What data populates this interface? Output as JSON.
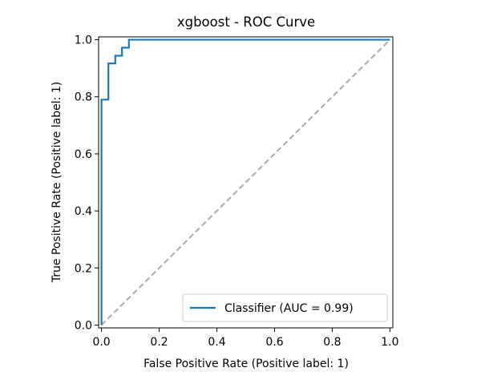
{
  "chart_data": {
    "type": "line",
    "title": "xgboost - ROC Curve",
    "xlabel": "False Positive Rate (Positive label: 1)",
    "ylabel": "True Positive Rate (Positive label: 1)",
    "xlim": [
      -0.01,
      1.01
    ],
    "ylim": [
      -0.01,
      1.01
    ],
    "xticks": [
      0.0,
      0.2,
      0.4,
      0.6,
      0.8,
      1.0
    ],
    "yticks": [
      0.0,
      0.2,
      0.4,
      0.6,
      0.8,
      1.0
    ],
    "xtick_labels": [
      "0.0",
      "0.2",
      "0.4",
      "0.6",
      "0.8",
      "1.0"
    ],
    "ytick_labels": [
      "0.0",
      "0.2",
      "0.4",
      "0.6",
      "0.8",
      "1.0"
    ],
    "grid": false,
    "legend_position": "bottom-right",
    "series": [
      {
        "name": "Classifier (AUC = 0.99)",
        "color": "#1f77b4",
        "style": "solid",
        "x": [
          0.0,
          0.0,
          0.0,
          0.024,
          0.024,
          0.048,
          0.048,
          0.071,
          0.071,
          0.095,
          0.095,
          1.0
        ],
        "y": [
          0.0,
          0.79,
          0.79,
          0.79,
          0.917,
          0.917,
          0.944,
          0.944,
          0.972,
          0.972,
          1.0,
          1.0
        ]
      },
      {
        "color": "#aaaaaa",
        "style": "dashed",
        "x": [
          0.0,
          1.0
        ],
        "y": [
          0.0,
          1.0
        ]
      }
    ]
  }
}
